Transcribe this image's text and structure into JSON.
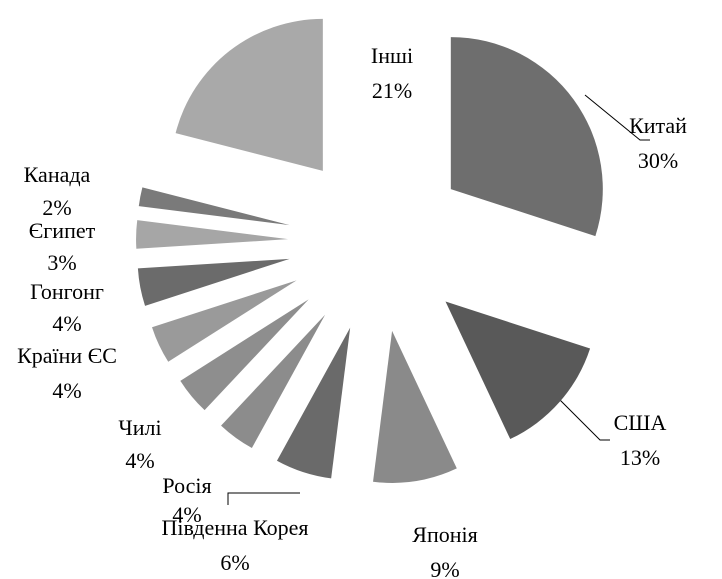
{
  "chart_data": {
    "type": "pie",
    "categories": [
      "Китай",
      "США",
      "Японія",
      "Південна Корея",
      "Росія",
      "Чилі",
      "Країни ЄС",
      "Гонгонг",
      "Єгипет",
      "Канада",
      "Інші"
    ],
    "values": [
      30,
      13,
      9,
      6,
      4,
      4,
      4,
      4,
      3,
      2,
      21
    ],
    "value_labels": [
      "30%",
      "13%",
      "9%",
      "6%",
      "4%",
      "4%",
      "4%",
      "4%",
      "3%",
      "2%",
      "21%"
    ],
    "colors": [
      "#6e6e6e",
      "#595959",
      "#8a8a8a",
      "#6a6a6a",
      "#8c8c8c",
      "#8e8e8e",
      "#9a9a9a",
      "#6b6b6b",
      "#a6a6a6",
      "#7a7a7a",
      "#a9a9a9"
    ]
  }
}
